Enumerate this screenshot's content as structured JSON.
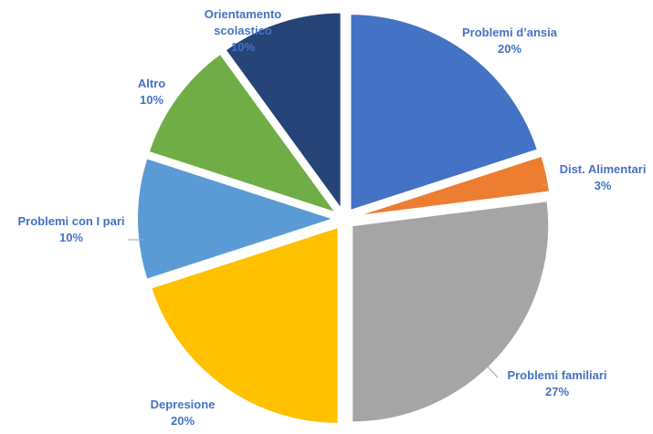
{
  "chart_data": {
    "type": "pie",
    "exploded": true,
    "start": "top, clockwise",
    "slices": [
      {
        "label": "Problemi d'ansia",
        "label_lines": [
          "Problemi d’ansia"
        ],
        "value": 20,
        "pct": "20%",
        "color": "#4472C4"
      },
      {
        "label": "Dist. Alimentari",
        "label_lines": [
          "Dist. Alimentari"
        ],
        "value": 3,
        "pct": "3%",
        "color": "#ED7D31"
      },
      {
        "label": "Problemi familiari",
        "label_lines": [
          "Problemi familiari"
        ],
        "value": 27,
        "pct": "27%",
        "color": "#A5A5A5"
      },
      {
        "label": "Depresione",
        "label_lines": [
          "Depresione"
        ],
        "value": 20,
        "pct": "20%",
        "color": "#FFC000"
      },
      {
        "label": "Problemi con I pari",
        "label_lines": [
          "Problemi con I pari"
        ],
        "value": 10,
        "pct": "10%",
        "color": "#5B9BD5"
      },
      {
        "label": "Altro",
        "label_lines": [
          "Altro"
        ],
        "value": 10,
        "pct": "10%",
        "color": "#70AD47"
      },
      {
        "label": "Orientamento scolastico",
        "label_lines": [
          "Orientamento",
          "scolastico"
        ],
        "value": 10,
        "pct": "10%",
        "color": "#264478"
      }
    ],
    "label_color": "#4472C4"
  }
}
